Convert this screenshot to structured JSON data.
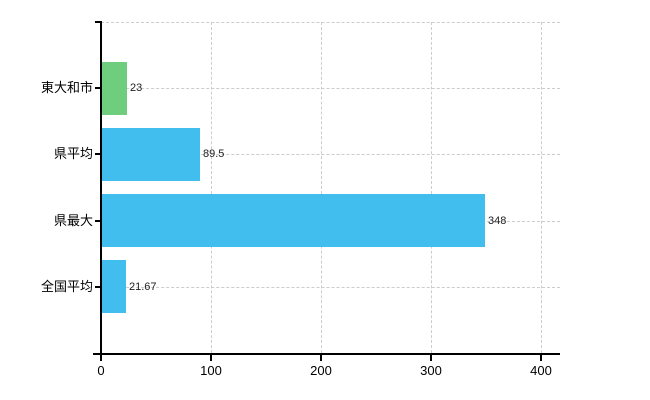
{
  "chart_data": {
    "type": "bar",
    "orientation": "horizontal",
    "title": "",
    "xlabel": "",
    "ylabel": "",
    "categories": [
      "東大和市",
      "県平均",
      "県最大",
      "全国平均"
    ],
    "values": [
      23,
      89.5,
      348,
      21.67
    ],
    "value_labels": [
      "23",
      "89.5",
      "348",
      "21.67"
    ],
    "bar_colors": [
      "#6FCE7E",
      "#41BDEE",
      "#41BDEE",
      "#41BDEE"
    ],
    "xlim": [
      0,
      417
    ],
    "xticks": [
      0,
      100,
      200,
      300,
      400
    ],
    "xtick_labels": [
      "0",
      "100",
      "200",
      "300",
      "400"
    ],
    "grid": true,
    "legend": null,
    "colors": {
      "green_bar": "#6FCE7E",
      "blue_bar": "#41BDEE",
      "grid": "#cccccc",
      "axis": "#000000",
      "text": "#000000",
      "background": "#ffffff"
    }
  }
}
